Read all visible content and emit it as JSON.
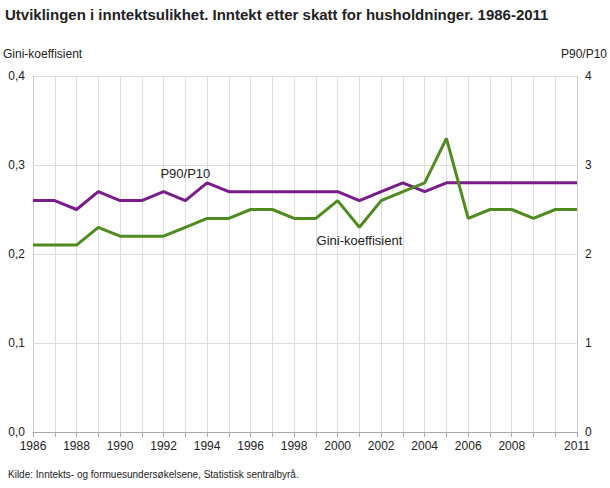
{
  "chart_data": {
    "type": "line",
    "title": "Utviklingen i inntektsulikhet. Inntekt etter skatt for husholdninger. 1986-2011",
    "source": "Kilde: Inntekts- og formuesundersøkelsene, Statistisk sentralbyrå.",
    "y_label": "Gini-koeffisient",
    "y2_label": "P90/P10",
    "categories": [
      "1986",
      null,
      "1988",
      null,
      "1990",
      null,
      "1992",
      null,
      "1994",
      null,
      "1996",
      null,
      "1998",
      null,
      "2000",
      null,
      "2002",
      null,
      "2004",
      null,
      "2006",
      null,
      "2008",
      null,
      null,
      "2011"
    ],
    "series": [
      {
        "name": "P90/P10",
        "color": "#7a1c8b",
        "axis": "y2",
        "values": [
          2.6,
          2.6,
          2.5,
          2.7,
          2.6,
          2.6,
          2.7,
          2.6,
          2.8,
          2.7,
          2.7,
          2.7,
          2.7,
          2.7,
          2.7,
          2.6,
          2.7,
          2.8,
          2.7,
          2.8,
          2.8,
          2.8,
          2.8,
          2.8,
          2.8,
          2.8
        ]
      },
      {
        "name": "Gini-koeffisient",
        "color": "#4f8c1f",
        "values": [
          0.21,
          0.21,
          0.21,
          0.23,
          0.22,
          0.22,
          0.22,
          0.23,
          0.24,
          0.24,
          0.25,
          0.25,
          0.24,
          0.24,
          0.26,
          0.23,
          0.26,
          0.27,
          0.28,
          0.33,
          0.24,
          0.25,
          0.25,
          0.24,
          0.25,
          0.25
        ]
      }
    ],
    "annotations": [
      {
        "text": "P90/P10",
        "x": 1993,
        "y": 2.9,
        "axis": "y2"
      },
      {
        "text": "Gini-koeffisient",
        "x": 2001,
        "y": 0.215
      }
    ],
    "ylim": [
      0,
      0.4
    ],
    "yticks": [
      {
        "value": 0,
        "label": "0,0"
      },
      {
        "value": 0.1,
        "label": "0,1"
      },
      {
        "value": 0.2,
        "label": "0,2"
      },
      {
        "value": 0.3,
        "label": "0,3"
      },
      {
        "value": 0.4,
        "label": "0,4"
      }
    ],
    "y2lim": [
      0,
      4
    ],
    "y2ticks": [
      0,
      1,
      2,
      3,
      4
    ],
    "grid": true
  }
}
